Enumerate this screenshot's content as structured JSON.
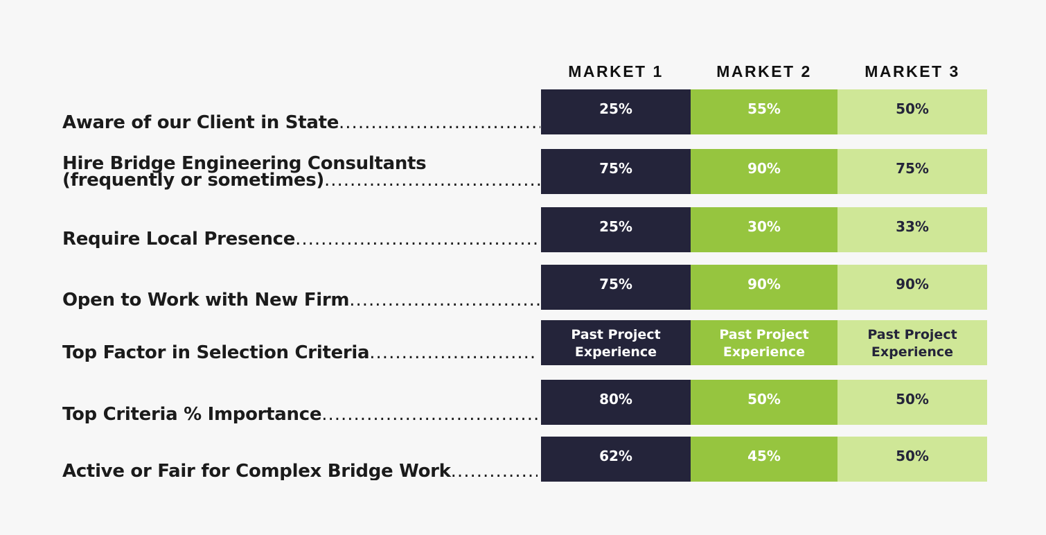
{
  "chart_data": {
    "type": "table",
    "columns": [
      "MARKET 1",
      "MARKET 2",
      "MARKET 3"
    ],
    "rows": [
      {
        "label_lines": [
          "Aware of our Client in State"
        ],
        "values": [
          "25%",
          "55%",
          "50%"
        ]
      },
      {
        "label_lines": [
          "Hire Bridge Engineering Consultants",
          "(frequently or sometimes)"
        ],
        "values": [
          "75%",
          "90%",
          "75%"
        ]
      },
      {
        "label_lines": [
          "Require Local Presence"
        ],
        "values": [
          "25%",
          "30%",
          "33%"
        ]
      },
      {
        "label_lines": [
          "Open to Work with New Firm"
        ],
        "values": [
          "75%",
          "90%",
          "90%"
        ]
      },
      {
        "label_lines": [
          "Top Factor in Selection Criteria"
        ],
        "values": [
          "Past Project Experience",
          "Past Project Experience",
          "Past Project Experience"
        ]
      },
      {
        "label_lines": [
          "Top Criteria % Importance"
        ],
        "values": [
          "80%",
          "50%",
          "50%"
        ]
      },
      {
        "label_lines": [
          "Active or Fair for Complex Bridge Work"
        ],
        "values": [
          "62%",
          "45%",
          "50%"
        ]
      }
    ],
    "colors": {
      "market1": "#24243a",
      "market2": "#96c53f",
      "market3": "#cfe797"
    }
  }
}
